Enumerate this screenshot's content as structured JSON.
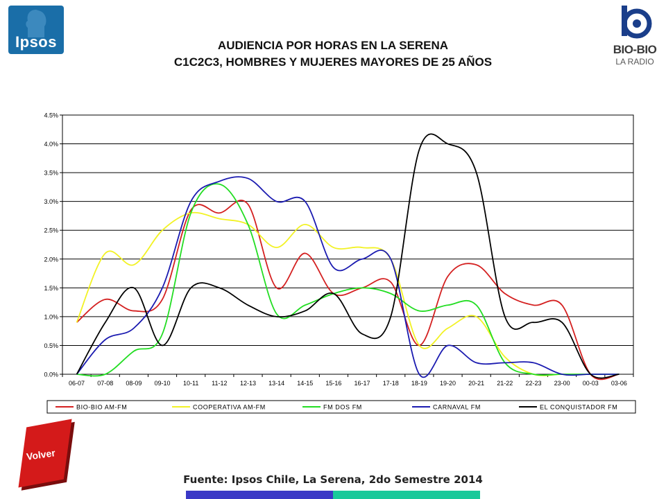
{
  "header": {
    "title_line1": "AUDIENCIA POR HORAS EN LA SERENA",
    "title_line2": "C1C2C3, HOMBRES Y MUJERES MAYORES DE 25 AÑOS"
  },
  "logos": {
    "ipsos": "Ipsos",
    "biobio_name": "BIO-BIO",
    "biobio_sub": "LA RADIO"
  },
  "volver_button": {
    "label": "Volver"
  },
  "footer": {
    "source": "Fuente: Ipsos Chile, La Serena, 2do Semestre 2014"
  },
  "colors": {
    "accent_blue": "#3a38c6",
    "accent_green": "#19c99a",
    "volver_red": "#d41a1a"
  },
  "chart_data": {
    "type": "line",
    "title": "",
    "xlabel": "",
    "ylabel": "",
    "ylim": [
      0,
      4.5
    ],
    "yticks": [
      "0.0%",
      "0.5%",
      "1.0%",
      "1.5%",
      "2.0%",
      "2.5%",
      "3.0%",
      "3.5%",
      "4.0%",
      "4.5%"
    ],
    "ytick_values": [
      0,
      0.5,
      1.0,
      1.5,
      2.0,
      2.5,
      3.0,
      3.5,
      4.0,
      4.5
    ],
    "grid": true,
    "legend_position": "bottom",
    "categories": [
      "06-07",
      "07-08",
      "08-09",
      "09-10",
      "10-11",
      "11-12",
      "12-13",
      "13-14",
      "14-15",
      "15-16",
      "16-17",
      "17-18",
      "18-19",
      "19-20",
      "20-21",
      "21-22",
      "22-23",
      "23-00",
      "00-03",
      "03-06"
    ],
    "series": [
      {
        "name": "BIO-BIO AM-FM",
        "color": "#d42020",
        "values": [
          0.9,
          1.3,
          1.1,
          1.3,
          2.85,
          2.8,
          2.95,
          1.5,
          2.1,
          1.4,
          1.5,
          1.6,
          0.5,
          1.7,
          1.9,
          1.4,
          1.2,
          1.2,
          0.0,
          0.0
        ]
      },
      {
        "name": "COOPERATIVA AM-FM",
        "color": "#f2f224",
        "values": [
          0.9,
          2.1,
          1.9,
          2.5,
          2.8,
          2.7,
          2.6,
          2.2,
          2.6,
          2.2,
          2.2,
          2.0,
          0.5,
          0.8,
          1.0,
          0.3,
          0.0,
          0.0,
          0.0,
          0.0
        ]
      },
      {
        "name": "FM DOS FM",
        "color": "#22dd22",
        "values": [
          0.0,
          0.0,
          0.4,
          0.7,
          2.8,
          3.3,
          2.6,
          1.05,
          1.2,
          1.4,
          1.5,
          1.4,
          1.1,
          1.2,
          1.2,
          0.2,
          0.0,
          0.0,
          0.0,
          0.0
        ]
      },
      {
        "name": "CARNAVAL FM",
        "color": "#1a1ab0",
        "values": [
          0.0,
          0.6,
          0.8,
          1.5,
          3.0,
          3.35,
          3.4,
          3.0,
          3.0,
          1.85,
          2.0,
          2.0,
          0.0,
          0.5,
          0.2,
          0.2,
          0.2,
          0.0,
          0.0,
          0.0
        ]
      },
      {
        "name": "EL CONQUISTADOR FM",
        "color": "#000000",
        "values": [
          0.0,
          0.9,
          1.5,
          0.5,
          1.5,
          1.5,
          1.2,
          1.0,
          1.1,
          1.4,
          0.7,
          1.0,
          3.9,
          4.0,
          3.5,
          1.0,
          0.9,
          0.9,
          0.0,
          0.0
        ]
      }
    ]
  }
}
